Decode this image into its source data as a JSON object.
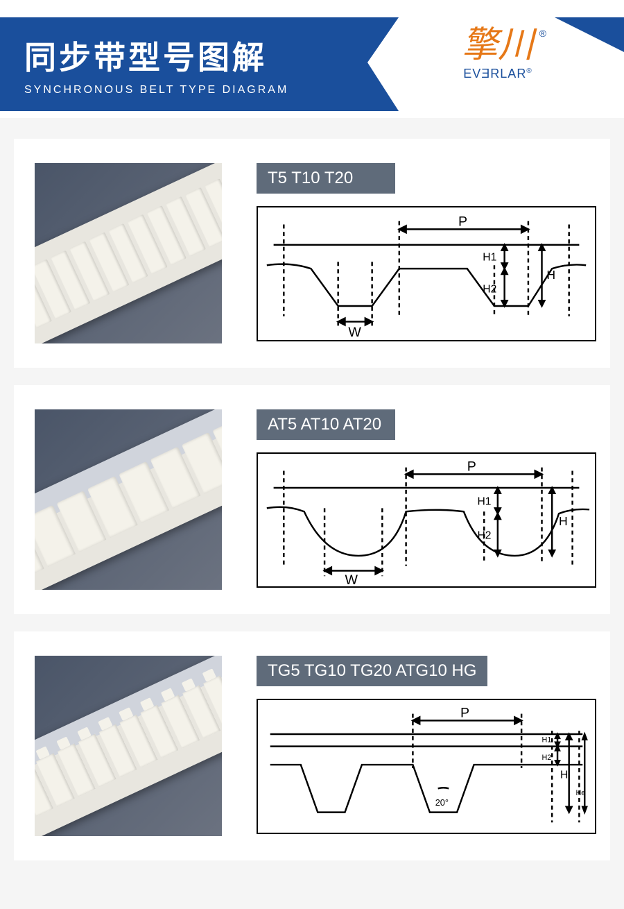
{
  "header": {
    "title_cn": "同步带型号图解",
    "title_en": "SYNCHRONOUS BELT TYPE DIAGRAM",
    "logo_calligraphy": "擎川",
    "logo_brand": "EVƎRLAR",
    "registered": "®"
  },
  "colors": {
    "primary_blue": "#1a4f9c",
    "label_gray": "#5f6b7a",
    "logo_orange": "#e67817",
    "page_bg": "#f5f5f5",
    "card_bg": "#ffffff",
    "belt_bg_dark": "#4a5568",
    "belt_cream": "#f4f2ea",
    "diagram_stroke": "#000000"
  },
  "sections": [
    {
      "id": "t",
      "type_label": "T5 T10 T20",
      "tooth_count": 13,
      "diagram_labels": {
        "pitch": "P",
        "width": "W",
        "h1": "H1",
        "h2": "H2",
        "h": "H"
      }
    },
    {
      "id": "at",
      "type_label": "AT5 AT10 AT20",
      "tooth_count": 8,
      "diagram_labels": {
        "pitch": "P",
        "width": "W",
        "h1": "H1",
        "h2": "H2",
        "h": "H"
      }
    },
    {
      "id": "tg",
      "type_label": "TG5 TG10 TG20 ATG10 HG",
      "tooth_count": 12,
      "diagram_labels": {
        "pitch": "P",
        "angle": "20°",
        "h1": "H1",
        "h2": "H2",
        "h": "H",
        "he": "He"
      }
    }
  ]
}
